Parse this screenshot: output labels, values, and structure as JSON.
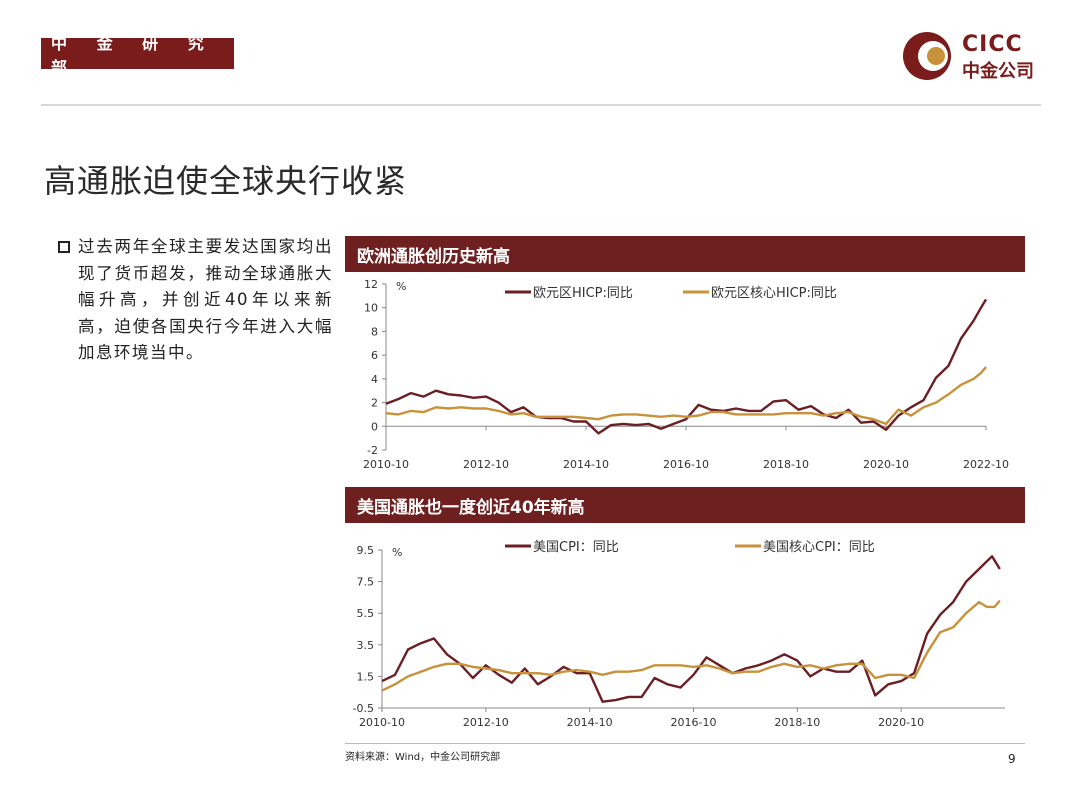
{
  "header": {
    "dept_label": "中 金 研 究 部",
    "logo_top": "CICC",
    "logo_bottom": "中金公司"
  },
  "page_title": "高通胀迫使全球央行收紧",
  "bullet": "过去两年全球主要发达国家均出现了货币超发，推动全球通胀大幅升高，并创近40年以来新高，迫使各国央行今年进入大幅加息环境当中。",
  "colors": {
    "brand": "#7a1c1c",
    "header_bg": "#6e1f1f",
    "series_dark": "#6b1f24",
    "series_gold": "#c8923a"
  },
  "source": "资料来源：Wind，中金公司研究部",
  "page_number": "9",
  "chart_data": [
    {
      "type": "line",
      "title": "欧洲通胀创历史新高",
      "ylabel": "%",
      "ylim": [
        -2,
        12
      ],
      "yticks": [
        -2,
        0,
        2,
        4,
        6,
        8,
        10,
        12
      ],
      "xlim": [
        2010.75,
        2022.75
      ],
      "xticks": [
        {
          "v": 2010.75,
          "label": "2010-10"
        },
        {
          "v": 2012.75,
          "label": "2012-10"
        },
        {
          "v": 2014.75,
          "label": "2014-10"
        },
        {
          "v": 2016.75,
          "label": "2016-10"
        },
        {
          "v": 2018.75,
          "label": "2018-10"
        },
        {
          "v": 2020.75,
          "label": "2020-10"
        },
        {
          "v": 2022.75,
          "label": "2022-10"
        }
      ],
      "legend": "top",
      "series": [
        {
          "name": "欧元区HICP:同比",
          "color": "#6b1f24",
          "points": [
            [
              2010.75,
              1.9
            ],
            [
              2011.0,
              2.3
            ],
            [
              2011.25,
              2.8
            ],
            [
              2011.5,
              2.5
            ],
            [
              2011.75,
              3.0
            ],
            [
              2012.0,
              2.7
            ],
            [
              2012.25,
              2.6
            ],
            [
              2012.5,
              2.4
            ],
            [
              2012.75,
              2.5
            ],
            [
              2013.0,
              2.0
            ],
            [
              2013.25,
              1.2
            ],
            [
              2013.5,
              1.6
            ],
            [
              2013.75,
              0.8
            ],
            [
              2014.0,
              0.7
            ],
            [
              2014.25,
              0.7
            ],
            [
              2014.5,
              0.4
            ],
            [
              2014.75,
              0.4
            ],
            [
              2015.0,
              -0.6
            ],
            [
              2015.25,
              0.1
            ],
            [
              2015.5,
              0.2
            ],
            [
              2015.75,
              0.1
            ],
            [
              2016.0,
              0.2
            ],
            [
              2016.25,
              -0.2
            ],
            [
              2016.5,
              0.2
            ],
            [
              2016.75,
              0.6
            ],
            [
              2017.0,
              1.8
            ],
            [
              2017.25,
              1.4
            ],
            [
              2017.5,
              1.3
            ],
            [
              2017.75,
              1.5
            ],
            [
              2018.0,
              1.3
            ],
            [
              2018.25,
              1.3
            ],
            [
              2018.5,
              2.1
            ],
            [
              2018.75,
              2.2
            ],
            [
              2019.0,
              1.4
            ],
            [
              2019.25,
              1.7
            ],
            [
              2019.5,
              1.0
            ],
            [
              2019.75,
              0.7
            ],
            [
              2020.0,
              1.4
            ],
            [
              2020.25,
              0.3
            ],
            [
              2020.5,
              0.4
            ],
            [
              2020.75,
              -0.3
            ],
            [
              2021.0,
              0.9
            ],
            [
              2021.25,
              1.6
            ],
            [
              2021.5,
              2.2
            ],
            [
              2021.75,
              4.1
            ],
            [
              2022.0,
              5.1
            ],
            [
              2022.25,
              7.4
            ],
            [
              2022.5,
              8.9
            ],
            [
              2022.65,
              10.0
            ],
            [
              2022.75,
              10.7
            ]
          ]
        },
        {
          "name": "欧元区核心HICP:同比",
          "color": "#c8923a",
          "points": [
            [
              2010.75,
              1.1
            ],
            [
              2011.0,
              1.0
            ],
            [
              2011.25,
              1.3
            ],
            [
              2011.5,
              1.2
            ],
            [
              2011.75,
              1.6
            ],
            [
              2012.0,
              1.5
            ],
            [
              2012.25,
              1.6
            ],
            [
              2012.5,
              1.5
            ],
            [
              2012.75,
              1.5
            ],
            [
              2013.0,
              1.3
            ],
            [
              2013.25,
              1.0
            ],
            [
              2013.5,
              1.1
            ],
            [
              2013.75,
              0.8
            ],
            [
              2014.0,
              0.8
            ],
            [
              2014.25,
              0.8
            ],
            [
              2014.5,
              0.8
            ],
            [
              2014.75,
              0.7
            ],
            [
              2015.0,
              0.6
            ],
            [
              2015.25,
              0.9
            ],
            [
              2015.5,
              1.0
            ],
            [
              2015.75,
              1.0
            ],
            [
              2016.0,
              0.9
            ],
            [
              2016.25,
              0.8
            ],
            [
              2016.5,
              0.9
            ],
            [
              2016.75,
              0.8
            ],
            [
              2017.0,
              0.9
            ],
            [
              2017.25,
              1.2
            ],
            [
              2017.5,
              1.2
            ],
            [
              2017.75,
              1.0
            ],
            [
              2018.0,
              1.0
            ],
            [
              2018.25,
              1.0
            ],
            [
              2018.5,
              1.0
            ],
            [
              2018.75,
              1.1
            ],
            [
              2019.0,
              1.1
            ],
            [
              2019.25,
              1.1
            ],
            [
              2019.5,
              0.9
            ],
            [
              2019.75,
              1.1
            ],
            [
              2020.0,
              1.2
            ],
            [
              2020.25,
              0.8
            ],
            [
              2020.5,
              0.6
            ],
            [
              2020.75,
              0.2
            ],
            [
              2021.0,
              1.4
            ],
            [
              2021.25,
              0.9
            ],
            [
              2021.5,
              1.6
            ],
            [
              2021.75,
              2.0
            ],
            [
              2022.0,
              2.7
            ],
            [
              2022.25,
              3.5
            ],
            [
              2022.5,
              4.0
            ],
            [
              2022.65,
              4.5
            ],
            [
              2022.75,
              5.0
            ]
          ]
        }
      ]
    },
    {
      "type": "line",
      "title": "美国通胀也一度创近40年新高",
      "ylabel": "%",
      "ylim": [
        -0.5,
        9.5
      ],
      "yticks": [
        -0.5,
        1.5,
        3.5,
        5.5,
        7.5,
        9.5
      ],
      "xlim": [
        2010.75,
        2022.75
      ],
      "xticks": [
        {
          "v": 2010.75,
          "label": "2010-10"
        },
        {
          "v": 2012.75,
          "label": "2012-10"
        },
        {
          "v": 2014.75,
          "label": "2014-10"
        },
        {
          "v": 2016.75,
          "label": "2016-10"
        },
        {
          "v": 2018.75,
          "label": "2018-10"
        },
        {
          "v": 2020.75,
          "label": "2020-10"
        }
      ],
      "legend": "top",
      "series": [
        {
          "name": "美国CPI：同比",
          "color": "#6b1f24",
          "points": [
            [
              2010.75,
              1.2
            ],
            [
              2011.0,
              1.6
            ],
            [
              2011.25,
              3.2
            ],
            [
              2011.5,
              3.6
            ],
            [
              2011.75,
              3.9
            ],
            [
              2012.0,
              2.9
            ],
            [
              2012.25,
              2.3
            ],
            [
              2012.5,
              1.4
            ],
            [
              2012.75,
              2.2
            ],
            [
              2013.0,
              1.6
            ],
            [
              2013.25,
              1.1
            ],
            [
              2013.5,
              2.0
            ],
            [
              2013.75,
              1.0
            ],
            [
              2014.0,
              1.5
            ],
            [
              2014.25,
              2.1
            ],
            [
              2014.5,
              1.7
            ],
            [
              2014.75,
              1.7
            ],
            [
              2015.0,
              -0.1
            ],
            [
              2015.25,
              0.0
            ],
            [
              2015.5,
              0.2
            ],
            [
              2015.75,
              0.2
            ],
            [
              2016.0,
              1.4
            ],
            [
              2016.25,
              1.0
            ],
            [
              2016.5,
              0.8
            ],
            [
              2016.75,
              1.6
            ],
            [
              2017.0,
              2.7
            ],
            [
              2017.25,
              2.2
            ],
            [
              2017.5,
              1.7
            ],
            [
              2017.75,
              2.0
            ],
            [
              2018.0,
              2.2
            ],
            [
              2018.25,
              2.5
            ],
            [
              2018.5,
              2.9
            ],
            [
              2018.75,
              2.5
            ],
            [
              2019.0,
              1.5
            ],
            [
              2019.25,
              2.0
            ],
            [
              2019.5,
              1.8
            ],
            [
              2019.75,
              1.8
            ],
            [
              2020.0,
              2.5
            ],
            [
              2020.25,
              0.3
            ],
            [
              2020.5,
              1.0
            ],
            [
              2020.75,
              1.2
            ],
            [
              2021.0,
              1.7
            ],
            [
              2021.25,
              4.2
            ],
            [
              2021.5,
              5.4
            ],
            [
              2021.75,
              6.2
            ],
            [
              2022.0,
              7.5
            ],
            [
              2022.25,
              8.3
            ],
            [
              2022.5,
              9.1
            ],
            [
              2022.65,
              8.3
            ]
          ]
        },
        {
          "name": "美国核心CPI：同比",
          "color": "#c8923a",
          "points": [
            [
              2010.75,
              0.6
            ],
            [
              2011.0,
              1.0
            ],
            [
              2011.25,
              1.5
            ],
            [
              2011.5,
              1.8
            ],
            [
              2011.75,
              2.1
            ],
            [
              2012.0,
              2.3
            ],
            [
              2012.25,
              2.3
            ],
            [
              2012.5,
              2.1
            ],
            [
              2012.75,
              2.0
            ],
            [
              2013.0,
              1.9
            ],
            [
              2013.25,
              1.7
            ],
            [
              2013.5,
              1.7
            ],
            [
              2013.75,
              1.7
            ],
            [
              2014.0,
              1.6
            ],
            [
              2014.25,
              1.8
            ],
            [
              2014.5,
              1.9
            ],
            [
              2014.75,
              1.8
            ],
            [
              2015.0,
              1.6
            ],
            [
              2015.25,
              1.8
            ],
            [
              2015.5,
              1.8
            ],
            [
              2015.75,
              1.9
            ],
            [
              2016.0,
              2.2
            ],
            [
              2016.25,
              2.2
            ],
            [
              2016.5,
              2.2
            ],
            [
              2016.75,
              2.1
            ],
            [
              2017.0,
              2.2
            ],
            [
              2017.25,
              2.0
            ],
            [
              2017.5,
              1.7
            ],
            [
              2017.75,
              1.8
            ],
            [
              2018.0,
              1.8
            ],
            [
              2018.25,
              2.1
            ],
            [
              2018.5,
              2.3
            ],
            [
              2018.75,
              2.1
            ],
            [
              2019.0,
              2.2
            ],
            [
              2019.25,
              2.0
            ],
            [
              2019.5,
              2.2
            ],
            [
              2019.75,
              2.3
            ],
            [
              2020.0,
              2.3
            ],
            [
              2020.25,
              1.4
            ],
            [
              2020.5,
              1.6
            ],
            [
              2020.75,
              1.6
            ],
            [
              2021.0,
              1.4
            ],
            [
              2021.25,
              3.0
            ],
            [
              2021.5,
              4.3
            ],
            [
              2021.75,
              4.6
            ],
            [
              2022.0,
              5.5
            ],
            [
              2022.25,
              6.2
            ],
            [
              2022.4,
              5.9
            ],
            [
              2022.55,
              5.9
            ],
            [
              2022.65,
              6.3
            ]
          ]
        }
      ]
    }
  ]
}
